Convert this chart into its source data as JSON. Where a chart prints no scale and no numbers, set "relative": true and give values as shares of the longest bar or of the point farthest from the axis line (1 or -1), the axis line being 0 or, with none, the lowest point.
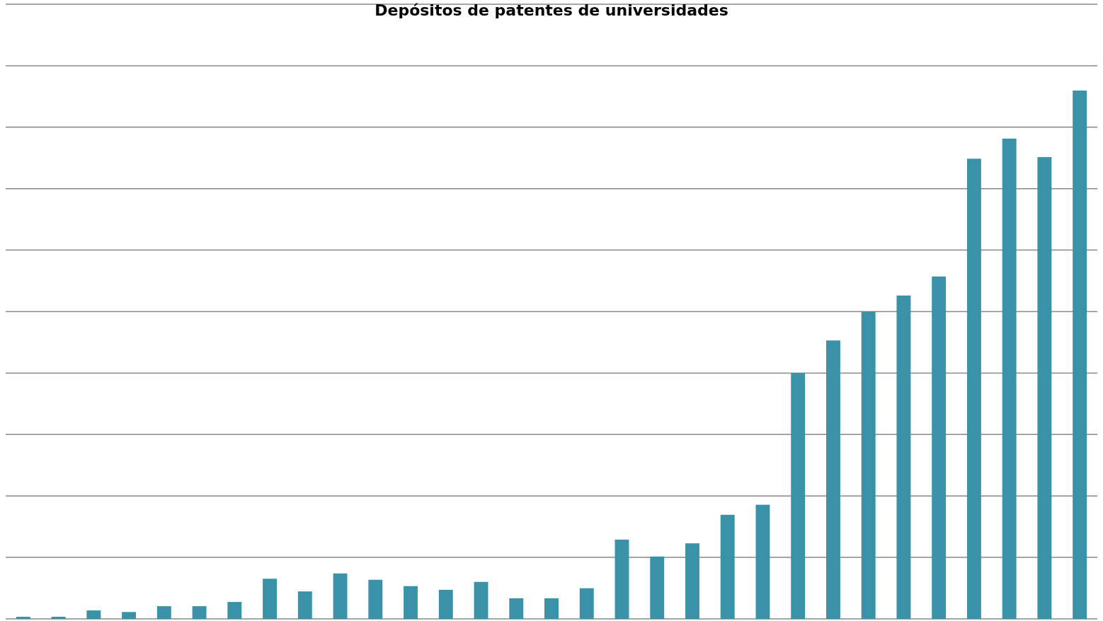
{
  "chart_data": {
    "type": "bar",
    "title": "Depósitos de patentes de universidades",
    "relative": true,
    "grid": true,
    "color": "#3a92a8",
    "categories": [
      null,
      null,
      null,
      null,
      null,
      null,
      null,
      null,
      null,
      null,
      null,
      null,
      null,
      null,
      null,
      null,
      null,
      null,
      null,
      null,
      null,
      null,
      null,
      null,
      null,
      null,
      null,
      null,
      null,
      null,
      null
    ],
    "values": [
      0.004,
      0.004,
      0.016,
      0.013,
      0.024,
      0.024,
      0.032,
      0.076,
      0.052,
      0.086,
      0.074,
      0.062,
      0.055,
      0.07,
      0.039,
      0.039,
      0.058,
      0.15,
      0.118,
      0.143,
      0.197,
      0.216,
      0.465,
      0.527,
      0.581,
      0.612,
      0.648,
      0.871,
      0.909,
      0.874,
      1
    ]
  }
}
